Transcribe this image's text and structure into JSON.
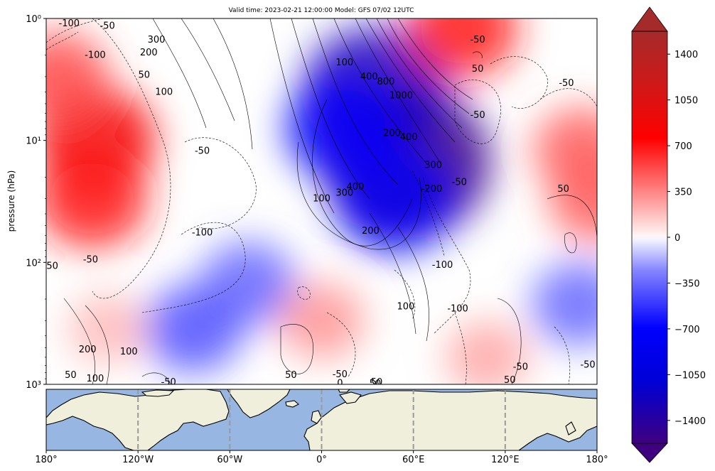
{
  "chart_data": [
    {
      "type": "heatmap",
      "subtype": "filled-contour with line-contour overlay (pressure vs longitude cross-section)",
      "title": "Valid time: 2023-02-21 12:00:00 Model: GFS 07/02 12UTC",
      "xlabel": "",
      "ylabel": "pressure (hPa)",
      "xlim": [
        -180,
        180
      ],
      "ylim": [
        1000,
        1
      ],
      "y_scale": "log",
      "y_ticks": [
        {
          "value": 1,
          "label": "10⁰"
        },
        {
          "value": 10,
          "label": "10¹"
        },
        {
          "value": 100,
          "label": "10²"
        },
        {
          "value": 1000,
          "label": "10³"
        }
      ],
      "colormap": "bwr",
      "colorbar": {
        "vmin": -1575,
        "vmax": 1575,
        "extend": "both",
        "ticks": [
          -1400,
          -1050,
          -700,
          -350,
          0,
          350,
          700,
          1050,
          1400
        ],
        "tick_labels": [
          "−1400",
          "−1050",
          "−700",
          "−350",
          "0",
          "350",
          "700",
          "1050",
          "1400"
        ]
      },
      "fill_regions": [
        {
          "lon": -148,
          "p": 10,
          "value": 800
        },
        {
          "lon": -150,
          "p": 30,
          "value": 650
        },
        {
          "lon": -172,
          "p": 3,
          "value": 500
        },
        {
          "lon": 55,
          "p": 15,
          "value": -1500
        },
        {
          "lon": 35,
          "p": 4,
          "value": -1150
        },
        {
          "lon": 48,
          "p": 30,
          "value": -800
        },
        {
          "lon": 15,
          "p": 8,
          "value": -750
        },
        {
          "lon": -48,
          "p": 150,
          "value": -430
        },
        {
          "lon": -84,
          "p": 350,
          "value": -480
        },
        {
          "lon": 168,
          "p": 220,
          "value": -420
        },
        {
          "lon": 92,
          "p": 1.2,
          "value": 650
        },
        {
          "lon": 170,
          "p": 12,
          "value": 450
        },
        {
          "lon": 0,
          "p": 300,
          "value": 300
        },
        {
          "lon": 108,
          "p": 600,
          "value": 250
        },
        {
          "lon": 180,
          "p": 30,
          "value": 450
        },
        {
          "lon": -140,
          "p": 350,
          "value": 200
        }
      ],
      "contour_labels": [
        {
          "lon": -165,
          "p": 1.1,
          "text": "-100"
        },
        {
          "lon": -140,
          "p": 1.15,
          "text": "-50"
        },
        {
          "lon": -148,
          "p": 2.0,
          "text": "-100"
        },
        {
          "lon": -108,
          "p": 1.5,
          "text": "300"
        },
        {
          "lon": -113,
          "p": 1.9,
          "text": "200"
        },
        {
          "lon": -116,
          "p": 2.9,
          "text": "50"
        },
        {
          "lon": -103,
          "p": 4.0,
          "text": "100"
        },
        {
          "lon": -78,
          "p": 12.2,
          "text": "-50"
        },
        {
          "lon": 15,
          "p": 2.3,
          "text": "100"
        },
        {
          "lon": 31,
          "p": 3.0,
          "text": "400"
        },
        {
          "lon": 42,
          "p": 3.3,
          "text": "800"
        },
        {
          "lon": 52,
          "p": 4.3,
          "text": "1000"
        },
        {
          "lon": 46,
          "p": 8.7,
          "text": "200"
        },
        {
          "lon": 57,
          "p": 9.4,
          "text": "400"
        },
        {
          "lon": 73,
          "p": 16,
          "text": "300"
        },
        {
          "lon": 72,
          "p": 25,
          "text": "-200"
        },
        {
          "lon": 90,
          "p": 22,
          "text": "-50"
        },
        {
          "lon": 102,
          "p": 1.5,
          "text": "-50"
        },
        {
          "lon": 102,
          "p": 2.6,
          "text": "50"
        },
        {
          "lon": 102,
          "p": 6.2,
          "text": "-50"
        },
        {
          "lon": 160,
          "p": 3.4,
          "text": "-50"
        },
        {
          "lon": 158,
          "p": 25,
          "text": "50"
        },
        {
          "lon": 22,
          "p": 24,
          "text": "400"
        },
        {
          "lon": 15,
          "p": 27,
          "text": "300"
        },
        {
          "lon": 0,
          "p": 30,
          "text": "100"
        },
        {
          "lon": -78,
          "p": 57,
          "text": "-100"
        },
        {
          "lon": 32,
          "p": 55,
          "text": "200"
        },
        {
          "lon": -176,
          "p": 107,
          "text": "50"
        },
        {
          "lon": -151,
          "p": 95,
          "text": "-50"
        },
        {
          "lon": 79,
          "p": 105,
          "text": "-100"
        },
        {
          "lon": 55,
          "p": 230,
          "text": "100"
        },
        {
          "lon": 89,
          "p": 240,
          "text": "-100"
        },
        {
          "lon": -153,
          "p": 520,
          "text": "200"
        },
        {
          "lon": -126,
          "p": 540,
          "text": "100"
        },
        {
          "lon": -164,
          "p": 840,
          "text": "50"
        },
        {
          "lon": -148,
          "p": 900,
          "text": "100"
        },
        {
          "lon": -20,
          "p": 840,
          "text": "50"
        },
        {
          "lon": 12,
          "p": 830,
          "text": "-50"
        },
        {
          "lon": 130,
          "p": 720,
          "text": "-50"
        },
        {
          "lon": 174,
          "p": 690,
          "text": "-50"
        },
        {
          "lon": 123,
          "p": 920,
          "text": "50"
        },
        {
          "lon": -100,
          "p": 960,
          "text": "-50"
        },
        {
          "lon": 36,
          "p": 960,
          "text": "50"
        },
        {
          "lon": 12,
          "p": 980,
          "text": "0"
        },
        {
          "lon": 35,
          "p": 985,
          "text": "50"
        }
      ]
    },
    {
      "type": "map",
      "description": "Longitude reference strip: Northern Hemisphere landmasses, equirectangular",
      "xlim": [
        -180,
        180
      ],
      "x_ticks": [
        -180,
        -120,
        -60,
        0,
        60,
        120,
        180
      ],
      "x_tick_labels": [
        "180°",
        "120°W",
        "60°W",
        "0°",
        "60°E",
        "120°E",
        "180°"
      ],
      "gridlines_dashed_at": [
        -120,
        -60,
        0,
        60,
        120
      ],
      "ocean_color": "#97b6e1",
      "land_color": "#efefdb"
    }
  ]
}
